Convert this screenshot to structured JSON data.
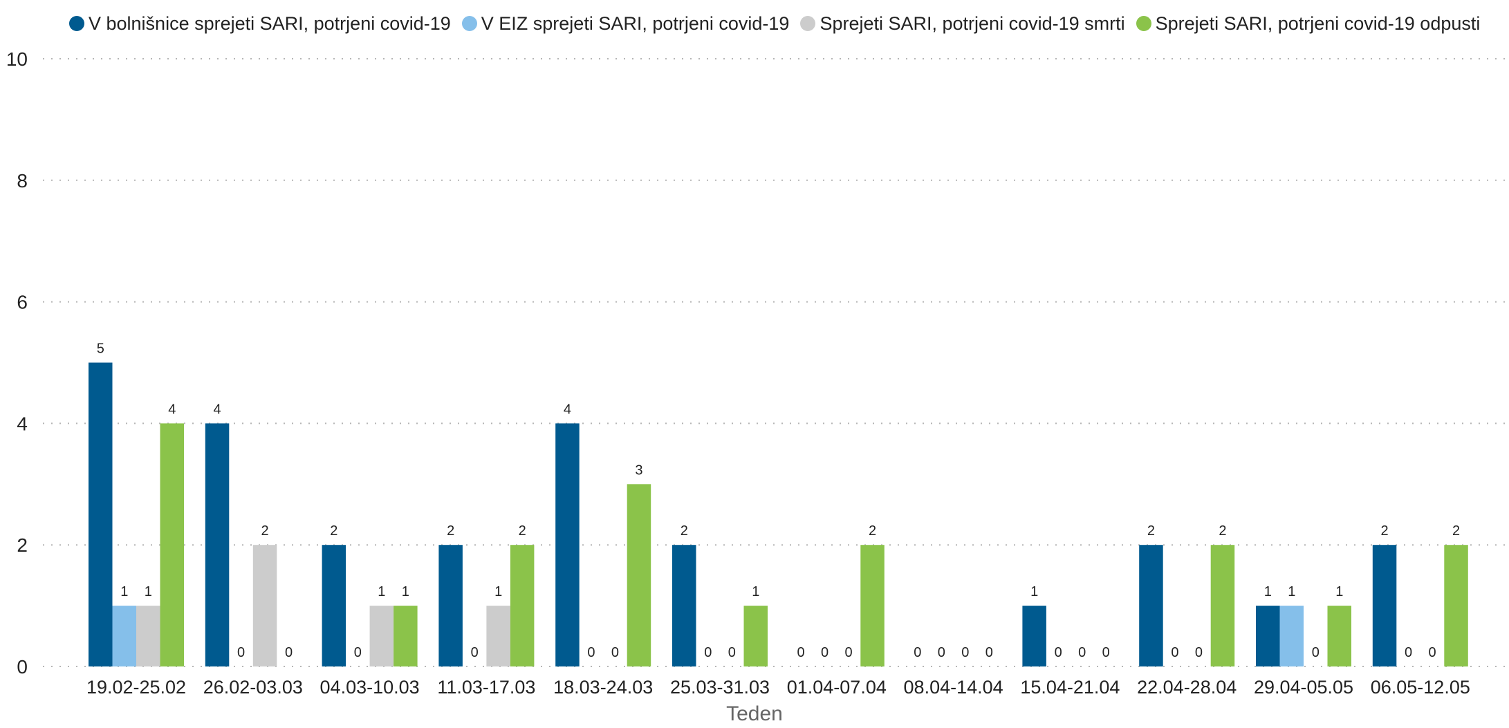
{
  "chart_data": {
    "type": "bar",
    "xlabel": "Teden",
    "ylabel": "",
    "ylim": [
      0,
      10
    ],
    "yticks": [
      0,
      2,
      4,
      6,
      8,
      10
    ],
    "grid": "horizontal dotted",
    "legend_position": "top-left",
    "categories": [
      "19.02-25.02",
      "26.02-03.03",
      "04.03-10.03",
      "11.03-17.03",
      "18.03-24.03",
      "25.03-31.03",
      "01.04-07.04",
      "08.04-14.04",
      "15.04-21.04",
      "22.04-28.04",
      "29.04-05.05",
      "06.05-12.05"
    ],
    "series": [
      {
        "name": "V bolnišnice sprejeti SARI, potrjeni covid-19",
        "color": "#005a8f",
        "values": [
          5,
          4,
          2,
          2,
          4,
          2,
          0,
          0,
          1,
          2,
          1,
          2
        ]
      },
      {
        "name": "V EIZ sprejeti SARI, potrjeni covid-19",
        "color": "#85bfea",
        "values": [
          1,
          0,
          0,
          0,
          0,
          0,
          0,
          0,
          0,
          0,
          1,
          0
        ]
      },
      {
        "name": "Sprejeti SARI, potrjeni covid-19 smrti",
        "color": "#cccccc",
        "values": [
          1,
          2,
          1,
          1,
          0,
          0,
          0,
          0,
          0,
          0,
          0,
          0
        ]
      },
      {
        "name": "Sprejeti SARI, potrjeni covid-19 odpusti",
        "color": "#8bc34a",
        "values": [
          4,
          0,
          1,
          2,
          3,
          1,
          2,
          0,
          0,
          2,
          1,
          2
        ]
      }
    ]
  }
}
